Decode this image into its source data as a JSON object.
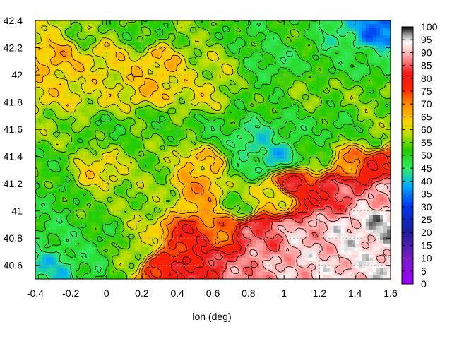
{
  "chart_data": {
    "type": "heatmap",
    "title": "",
    "xlabel": "lon (deg)",
    "ylabel": "",
    "xlim": [
      -0.4,
      1.6
    ],
    "ylim": [
      40.5,
      42.4
    ],
    "x_ticks": [
      "-0.4",
      "-0.2",
      "0",
      "0.2",
      "0.4",
      "0.6",
      "0.8",
      "1",
      "1.2",
      "1.4",
      "1.6"
    ],
    "y_ticks": [
      "40.6",
      "40.8",
      "41",
      "41.2",
      "41.4",
      "41.6",
      "41.8",
      "42",
      "42.2",
      "42.4"
    ],
    "colorbar": {
      "range": [
        0,
        100
      ],
      "ticks": [
        "0",
        "5",
        "10",
        "15",
        "20",
        "25",
        "30",
        "35",
        "40",
        "45",
        "50",
        "55",
        "60",
        "65",
        "70",
        "75",
        "80",
        "85",
        "90",
        "95",
        "100"
      ],
      "colors": [
        {
          "v": 0,
          "c": "#9900ff"
        },
        {
          "v": 10,
          "c": "#7a1ec8"
        },
        {
          "v": 20,
          "c": "#1e1e96"
        },
        {
          "v": 30,
          "c": "#0033ee"
        },
        {
          "v": 38,
          "c": "#00aaff"
        },
        {
          "v": 45,
          "c": "#33ee66"
        },
        {
          "v": 52,
          "c": "#22cc00"
        },
        {
          "v": 58,
          "c": "#b8dd00"
        },
        {
          "v": 63,
          "c": "#ffd400"
        },
        {
          "v": 70,
          "c": "#ff8800"
        },
        {
          "v": 76,
          "c": "#ff2200"
        },
        {
          "v": 82,
          "c": "#ee1c1c"
        },
        {
          "v": 88,
          "c": "#ff9999"
        },
        {
          "v": 94,
          "c": "#ffffff"
        },
        {
          "v": 97,
          "c": "#999999"
        },
        {
          "v": 100,
          "c": "#000000"
        }
      ]
    },
    "grid": true,
    "contours": true,
    "field_description": "relief values: high (75-95) over the southeast sea area, 40-65 over land, low (35-45) patches near 0.9E 41.4N and the northeast corner",
    "field_points": [
      {
        "x": -0.35,
        "y": 42.3,
        "v": 60
      },
      {
        "x": -0.1,
        "y": 42.3,
        "v": 55
      },
      {
        "x": 0.2,
        "y": 42.3,
        "v": 52
      },
      {
        "x": 0.5,
        "y": 42.3,
        "v": 55
      },
      {
        "x": 0.8,
        "y": 42.3,
        "v": 50
      },
      {
        "x": 1.1,
        "y": 42.3,
        "v": 52
      },
      {
        "x": 1.3,
        "y": 42.3,
        "v": 44
      },
      {
        "x": 1.55,
        "y": 42.33,
        "v": 33
      },
      {
        "x": -0.3,
        "y": 42.15,
        "v": 66
      },
      {
        "x": 0.0,
        "y": 42.15,
        "v": 62
      },
      {
        "x": 0.3,
        "y": 42.1,
        "v": 64
      },
      {
        "x": 0.6,
        "y": 42.05,
        "v": 58
      },
      {
        "x": 0.95,
        "y": 42.1,
        "v": 48
      },
      {
        "x": 1.25,
        "y": 42.1,
        "v": 50
      },
      {
        "x": 1.5,
        "y": 42.1,
        "v": 48
      },
      {
        "x": -0.3,
        "y": 41.9,
        "v": 62
      },
      {
        "x": 0.0,
        "y": 41.85,
        "v": 60
      },
      {
        "x": 0.25,
        "y": 41.9,
        "v": 64
      },
      {
        "x": 0.55,
        "y": 41.85,
        "v": 60
      },
      {
        "x": 0.85,
        "y": 41.85,
        "v": 52
      },
      {
        "x": 1.15,
        "y": 41.9,
        "v": 55
      },
      {
        "x": 1.45,
        "y": 41.85,
        "v": 55
      },
      {
        "x": -0.3,
        "y": 41.6,
        "v": 56
      },
      {
        "x": 0.0,
        "y": 41.6,
        "v": 52
      },
      {
        "x": 0.3,
        "y": 41.65,
        "v": 53
      },
      {
        "x": 0.6,
        "y": 41.6,
        "v": 50
      },
      {
        "x": 0.85,
        "y": 41.5,
        "v": 42
      },
      {
        "x": 1.0,
        "y": 41.55,
        "v": 48
      },
      {
        "x": 1.3,
        "y": 41.6,
        "v": 50
      },
      {
        "x": 1.5,
        "y": 41.55,
        "v": 55
      },
      {
        "x": -0.3,
        "y": 41.35,
        "v": 52
      },
      {
        "x": -0.05,
        "y": 41.3,
        "v": 62
      },
      {
        "x": 0.25,
        "y": 41.35,
        "v": 55
      },
      {
        "x": 0.55,
        "y": 41.35,
        "v": 65
      },
      {
        "x": 0.8,
        "y": 41.35,
        "v": 48
      },
      {
        "x": 0.95,
        "y": 41.4,
        "v": 40
      },
      {
        "x": 1.2,
        "y": 41.4,
        "v": 52
      },
      {
        "x": 1.35,
        "y": 41.38,
        "v": 70
      },
      {
        "x": 1.55,
        "y": 41.35,
        "v": 78
      },
      {
        "x": -0.3,
        "y": 41.05,
        "v": 50
      },
      {
        "x": 0.0,
        "y": 41.05,
        "v": 55
      },
      {
        "x": 0.3,
        "y": 41.1,
        "v": 56
      },
      {
        "x": 0.5,
        "y": 41.15,
        "v": 68
      },
      {
        "x": 0.75,
        "y": 41.05,
        "v": 55
      },
      {
        "x": 0.95,
        "y": 41.1,
        "v": 62
      },
      {
        "x": 1.05,
        "y": 41.2,
        "v": 80
      },
      {
        "x": 1.3,
        "y": 41.15,
        "v": 84
      },
      {
        "x": 1.55,
        "y": 41.1,
        "v": 90
      },
      {
        "x": -0.3,
        "y": 40.8,
        "v": 48
      },
      {
        "x": -0.05,
        "y": 40.8,
        "v": 50
      },
      {
        "x": 0.2,
        "y": 40.75,
        "v": 58
      },
      {
        "x": 0.45,
        "y": 40.8,
        "v": 78
      },
      {
        "x": 0.65,
        "y": 40.85,
        "v": 72
      },
      {
        "x": 0.85,
        "y": 40.85,
        "v": 86
      },
      {
        "x": 1.1,
        "y": 40.85,
        "v": 90
      },
      {
        "x": 1.4,
        "y": 40.85,
        "v": 93
      },
      {
        "x": 1.55,
        "y": 40.9,
        "v": 95
      },
      {
        "x": -0.3,
        "y": 40.58,
        "v": 42
      },
      {
        "x": -0.1,
        "y": 40.6,
        "v": 48
      },
      {
        "x": 0.1,
        "y": 40.6,
        "v": 55
      },
      {
        "x": 0.3,
        "y": 40.58,
        "v": 78
      },
      {
        "x": 0.55,
        "y": 40.6,
        "v": 82
      },
      {
        "x": 0.8,
        "y": 40.6,
        "v": 88
      },
      {
        "x": 1.1,
        "y": 40.6,
        "v": 91
      },
      {
        "x": 1.4,
        "y": 40.6,
        "v": 92
      },
      {
        "x": 1.55,
        "y": 40.6,
        "v": 93
      }
    ]
  }
}
